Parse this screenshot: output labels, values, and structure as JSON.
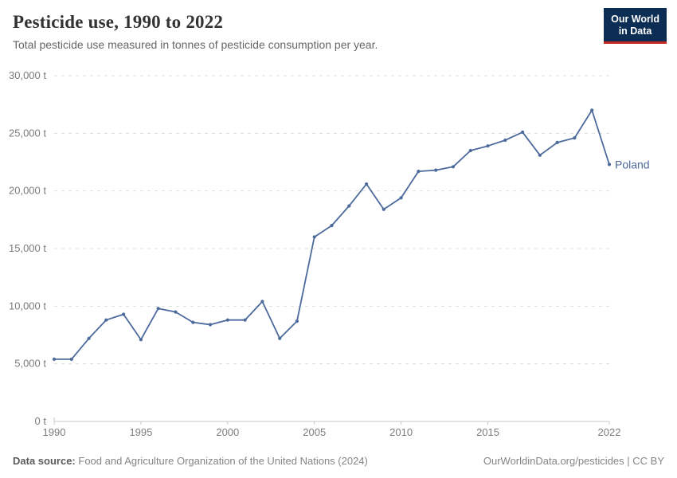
{
  "header": {
    "title": "Pesticide use, 1990 to 2022",
    "subtitle": "Total pesticide use measured in tonnes of pesticide consumption per year.",
    "logo": {
      "line1": "Our World",
      "line2": "in Data",
      "bg_color": "#0C2D54",
      "text_color": "#ffffff",
      "accent_color": "#C7281F"
    }
  },
  "chart_data": {
    "type": "line",
    "title": "Pesticide use, 1990 to 2022",
    "xlabel": "",
    "ylabel": "",
    "xlim": [
      1990,
      2022
    ],
    "ylim": [
      0,
      30000
    ],
    "grid": "horizontal-dashed",
    "legend_position": "end-of-line-label",
    "x": [
      1990,
      1991,
      1992,
      1993,
      1994,
      1995,
      1996,
      1997,
      1998,
      1999,
      2000,
      2001,
      2002,
      2003,
      2004,
      2005,
      2006,
      2007,
      2008,
      2009,
      2010,
      2011,
      2012,
      2013,
      2014,
      2015,
      2016,
      2017,
      2018,
      2019,
      2020,
      2021,
      2022
    ],
    "series": [
      {
        "name": "Poland",
        "color": "#4C6A9C",
        "values": [
          5400,
          5400,
          7200,
          8800,
          9300,
          7100,
          9800,
          9500,
          8600,
          8400,
          8800,
          8800,
          10400,
          7200,
          8700,
          16000,
          17000,
          18700,
          20600,
          18400,
          19400,
          21700,
          21800,
          22100,
          23500,
          23900,
          24400,
          25100,
          23100,
          24200,
          24600,
          27000,
          22300
        ]
      }
    ],
    "y_ticks": [
      0,
      5000,
      10000,
      15000,
      20000,
      25000,
      30000
    ],
    "y_tick_labels": [
      "0 t",
      "5,000 t",
      "10,000 t",
      "15,000 t",
      "20,000 t",
      "25,000 t",
      "30,000 t"
    ],
    "x_ticks": [
      1990,
      1995,
      2000,
      2005,
      2010,
      2015,
      2022
    ],
    "x_tick_labels": [
      "1990",
      "1995",
      "2000",
      "2005",
      "2010",
      "2015",
      "2022"
    ],
    "end_label": "Poland",
    "colors": {
      "grid": "#dddddd",
      "axis": "#c8c8c8",
      "tick_text": "#7c7c7c"
    }
  },
  "footer": {
    "source_label": "Data source:",
    "source_text": "Food and Agriculture Organization of the United Nations (2024)",
    "credit": "OurWorldinData.org/pesticides | CC BY"
  }
}
